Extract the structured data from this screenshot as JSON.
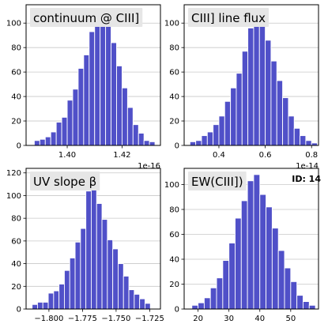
{
  "figure": {
    "id_label": "ID: 14"
  },
  "chart_data": [
    {
      "type": "bar",
      "title": "continuum @ CIII]",
      "xlabel": "",
      "ylabel": "",
      "offset_label": "1e-16",
      "xlim": [
        1.385,
        1.434
      ],
      "ylim": [
        0,
        115
      ],
      "xticks": [
        1.4,
        1.42
      ],
      "xtick_labels": [
        "1.40",
        "1.42"
      ],
      "yticks": [
        0,
        20,
        40,
        60,
        80,
        100
      ],
      "grid": "horizontal",
      "bar_color": "#5050c8",
      "bin_edges": [
        1.388,
        1.39,
        1.392,
        1.394,
        1.396,
        1.398,
        1.4,
        1.402,
        1.404,
        1.406,
        1.408,
        1.41,
        1.412,
        1.414,
        1.416,
        1.418,
        1.42,
        1.422,
        1.424,
        1.426,
        1.428,
        1.43,
        1.432
      ],
      "counts": [
        4,
        5,
        7,
        11,
        19,
        23,
        37,
        46,
        63,
        74,
        93,
        103,
        108,
        99,
        84,
        65,
        47,
        31,
        17,
        10,
        4,
        3
      ]
    },
    {
      "type": "bar",
      "title": "CIII] line flux",
      "xlabel": "",
      "ylabel": "",
      "offset_label": "1e-14",
      "xlim": [
        0.25,
        0.83
      ],
      "ylim": [
        0,
        115
      ],
      "xticks": [
        0.4,
        0.6,
        0.8
      ],
      "xtick_labels": [
        "0.4",
        "0.6",
        "0.8"
      ],
      "yticks": [
        0,
        20,
        40,
        60,
        80,
        100
      ],
      "grid": "horizontal",
      "bar_color": "#5050c8",
      "bin_edges": [
        0.275,
        0.3,
        0.325,
        0.35,
        0.375,
        0.4,
        0.425,
        0.45,
        0.475,
        0.5,
        0.525,
        0.55,
        0.575,
        0.6,
        0.625,
        0.65,
        0.675,
        0.7,
        0.725,
        0.75,
        0.775,
        0.8,
        0.825
      ],
      "counts": [
        3,
        4,
        8,
        11,
        17,
        24,
        36,
        47,
        59,
        77,
        96,
        107,
        101,
        86,
        69,
        53,
        39,
        24,
        14,
        8,
        4,
        2
      ]
    },
    {
      "type": "bar",
      "title": "UV slope β",
      "xlabel": "",
      "ylabel": "",
      "offset_label": "",
      "xlim": [
        -1.817,
        -1.717
      ],
      "ylim": [
        0,
        124
      ],
      "xticks": [
        -1.8,
        -1.775,
        -1.75,
        -1.725
      ],
      "xtick_labels": [
        "−1.800",
        "−1.775",
        "−1.750",
        "−1.725"
      ],
      "yticks": [
        0,
        20,
        40,
        60,
        80,
        100,
        120
      ],
      "grid": "horizontal",
      "bar_color": "#5050c8",
      "bin_edges": [
        -1.8125,
        -1.8085,
        -1.8045,
        -1.8005,
        -1.7965,
        -1.7925,
        -1.7885,
        -1.7845,
        -1.7805,
        -1.7765,
        -1.7725,
        -1.7685,
        -1.7645,
        -1.7605,
        -1.7565,
        -1.7525,
        -1.7485,
        -1.7445,
        -1.7405,
        -1.7365,
        -1.7325,
        -1.7285,
        -1.7245
      ],
      "counts": [
        4,
        6,
        6,
        14,
        16,
        22,
        34,
        45,
        59,
        71,
        104,
        117,
        93,
        79,
        61,
        53,
        40,
        29,
        17,
        13,
        9,
        5
      ]
    },
    {
      "type": "bar",
      "title": "EW(CIII])",
      "xlabel": "",
      "ylabel": "",
      "offset_label": "",
      "xlim": [
        15.5,
        59
      ],
      "ylim": [
        0,
        113
      ],
      "xticks": [
        20,
        30,
        40,
        50
      ],
      "xtick_labels": [
        "20",
        "30",
        "40",
        "50"
      ],
      "yticks": [
        0,
        20,
        40,
        60,
        80,
        100
      ],
      "grid": "horizontal",
      "bar_color": "#5050c8",
      "bin_edges": [
        18,
        20,
        22,
        24,
        26,
        28,
        30,
        32,
        34,
        36,
        38,
        40,
        42,
        44,
        46,
        48,
        50,
        52,
        54,
        56,
        58
      ],
      "counts": [
        3,
        5,
        9,
        17,
        25,
        39,
        53,
        73,
        87,
        103,
        108,
        92,
        82,
        65,
        47,
        33,
        22,
        11,
        6,
        3
      ]
    }
  ]
}
